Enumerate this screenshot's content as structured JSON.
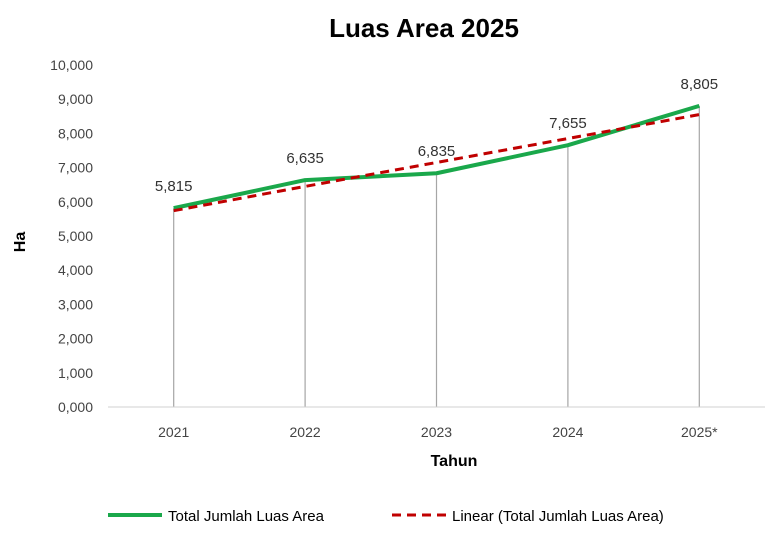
{
  "chart_data": {
    "type": "line",
    "title": "Luas Area 2025",
    "xlabel": "Tahun",
    "ylabel": "Ha",
    "categories": [
      "2021",
      "2022",
      "2023",
      "2024",
      "2025*"
    ],
    "ylim": [
      0,
      10
    ],
    "y_ticks": [
      "0,000",
      "1,000",
      "2,000",
      "3,000",
      "4,000",
      "5,000",
      "6,000",
      "7,000",
      "8,000",
      "9,000",
      "10,000"
    ],
    "drop_lines": true,
    "grid": false,
    "legend_position": "bottom",
    "series": [
      {
        "name": "Total Jumlah Luas Area",
        "values": [
          5.815,
          6.635,
          6.835,
          7.655,
          8.805
        ],
        "labels": [
          "5,815",
          "6,635",
          "6,835",
          "7,655",
          "8,805"
        ],
        "color": "#1AA84B",
        "style": "solid"
      },
      {
        "name": "Linear (Total Jumlah Luas Area)",
        "values": [
          5.74,
          6.45,
          7.15,
          7.85,
          8.55
        ],
        "color": "#C00000",
        "style": "dashed"
      }
    ]
  }
}
